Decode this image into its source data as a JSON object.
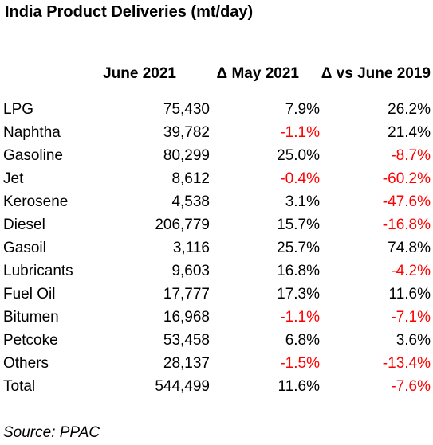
{
  "chart_data": {
    "type": "table",
    "title": "India Product Deliveries (mt/day)",
    "columns": [
      "June 2021",
      "Δ May 2021",
      "Δ vs June 2019"
    ],
    "rows": [
      {
        "label": "LPG",
        "june_2021": "75,430",
        "d_may_2021": "7.9%",
        "d_june_2019": "26.2%"
      },
      {
        "label": "Naphtha",
        "june_2021": "39,782",
        "d_may_2021": "-1.1%",
        "d_june_2019": "21.4%"
      },
      {
        "label": "Gasoline",
        "june_2021": "80,299",
        "d_may_2021": "25.0%",
        "d_june_2019": "-8.7%"
      },
      {
        "label": "Jet",
        "june_2021": "8,612",
        "d_may_2021": "-0.4%",
        "d_june_2019": "-60.2%"
      },
      {
        "label": "Kerosene",
        "june_2021": "4,538",
        "d_may_2021": "3.1%",
        "d_june_2019": "-47.6%"
      },
      {
        "label": "Diesel",
        "june_2021": "206,779",
        "d_may_2021": "15.7%",
        "d_june_2019": "-16.8%"
      },
      {
        "label": "Gasoil",
        "june_2021": "3,116",
        "d_may_2021": "25.7%",
        "d_june_2019": "74.8%"
      },
      {
        "label": "Lubricants",
        "june_2021": "9,603",
        "d_may_2021": "16.8%",
        "d_june_2019": "-4.2%"
      },
      {
        "label": "Fuel Oil",
        "june_2021": "17,777",
        "d_may_2021": "17.3%",
        "d_june_2019": "11.6%"
      },
      {
        "label": "Bitumen",
        "june_2021": "16,968",
        "d_may_2021": "-1.1%",
        "d_june_2019": "-7.1%"
      },
      {
        "label": "Petcoke",
        "june_2021": "53,458",
        "d_may_2021": "6.8%",
        "d_june_2019": "3.6%"
      },
      {
        "label": "Others",
        "june_2021": "28,137",
        "d_may_2021": "-1.5%",
        "d_june_2019": "-13.4%"
      },
      {
        "label": "Total",
        "june_2021": "544,499",
        "d_may_2021": "11.6%",
        "d_june_2019": "-7.6%"
      }
    ],
    "source": "Source: PPAC",
    "negative_color": "#ff0000"
  }
}
